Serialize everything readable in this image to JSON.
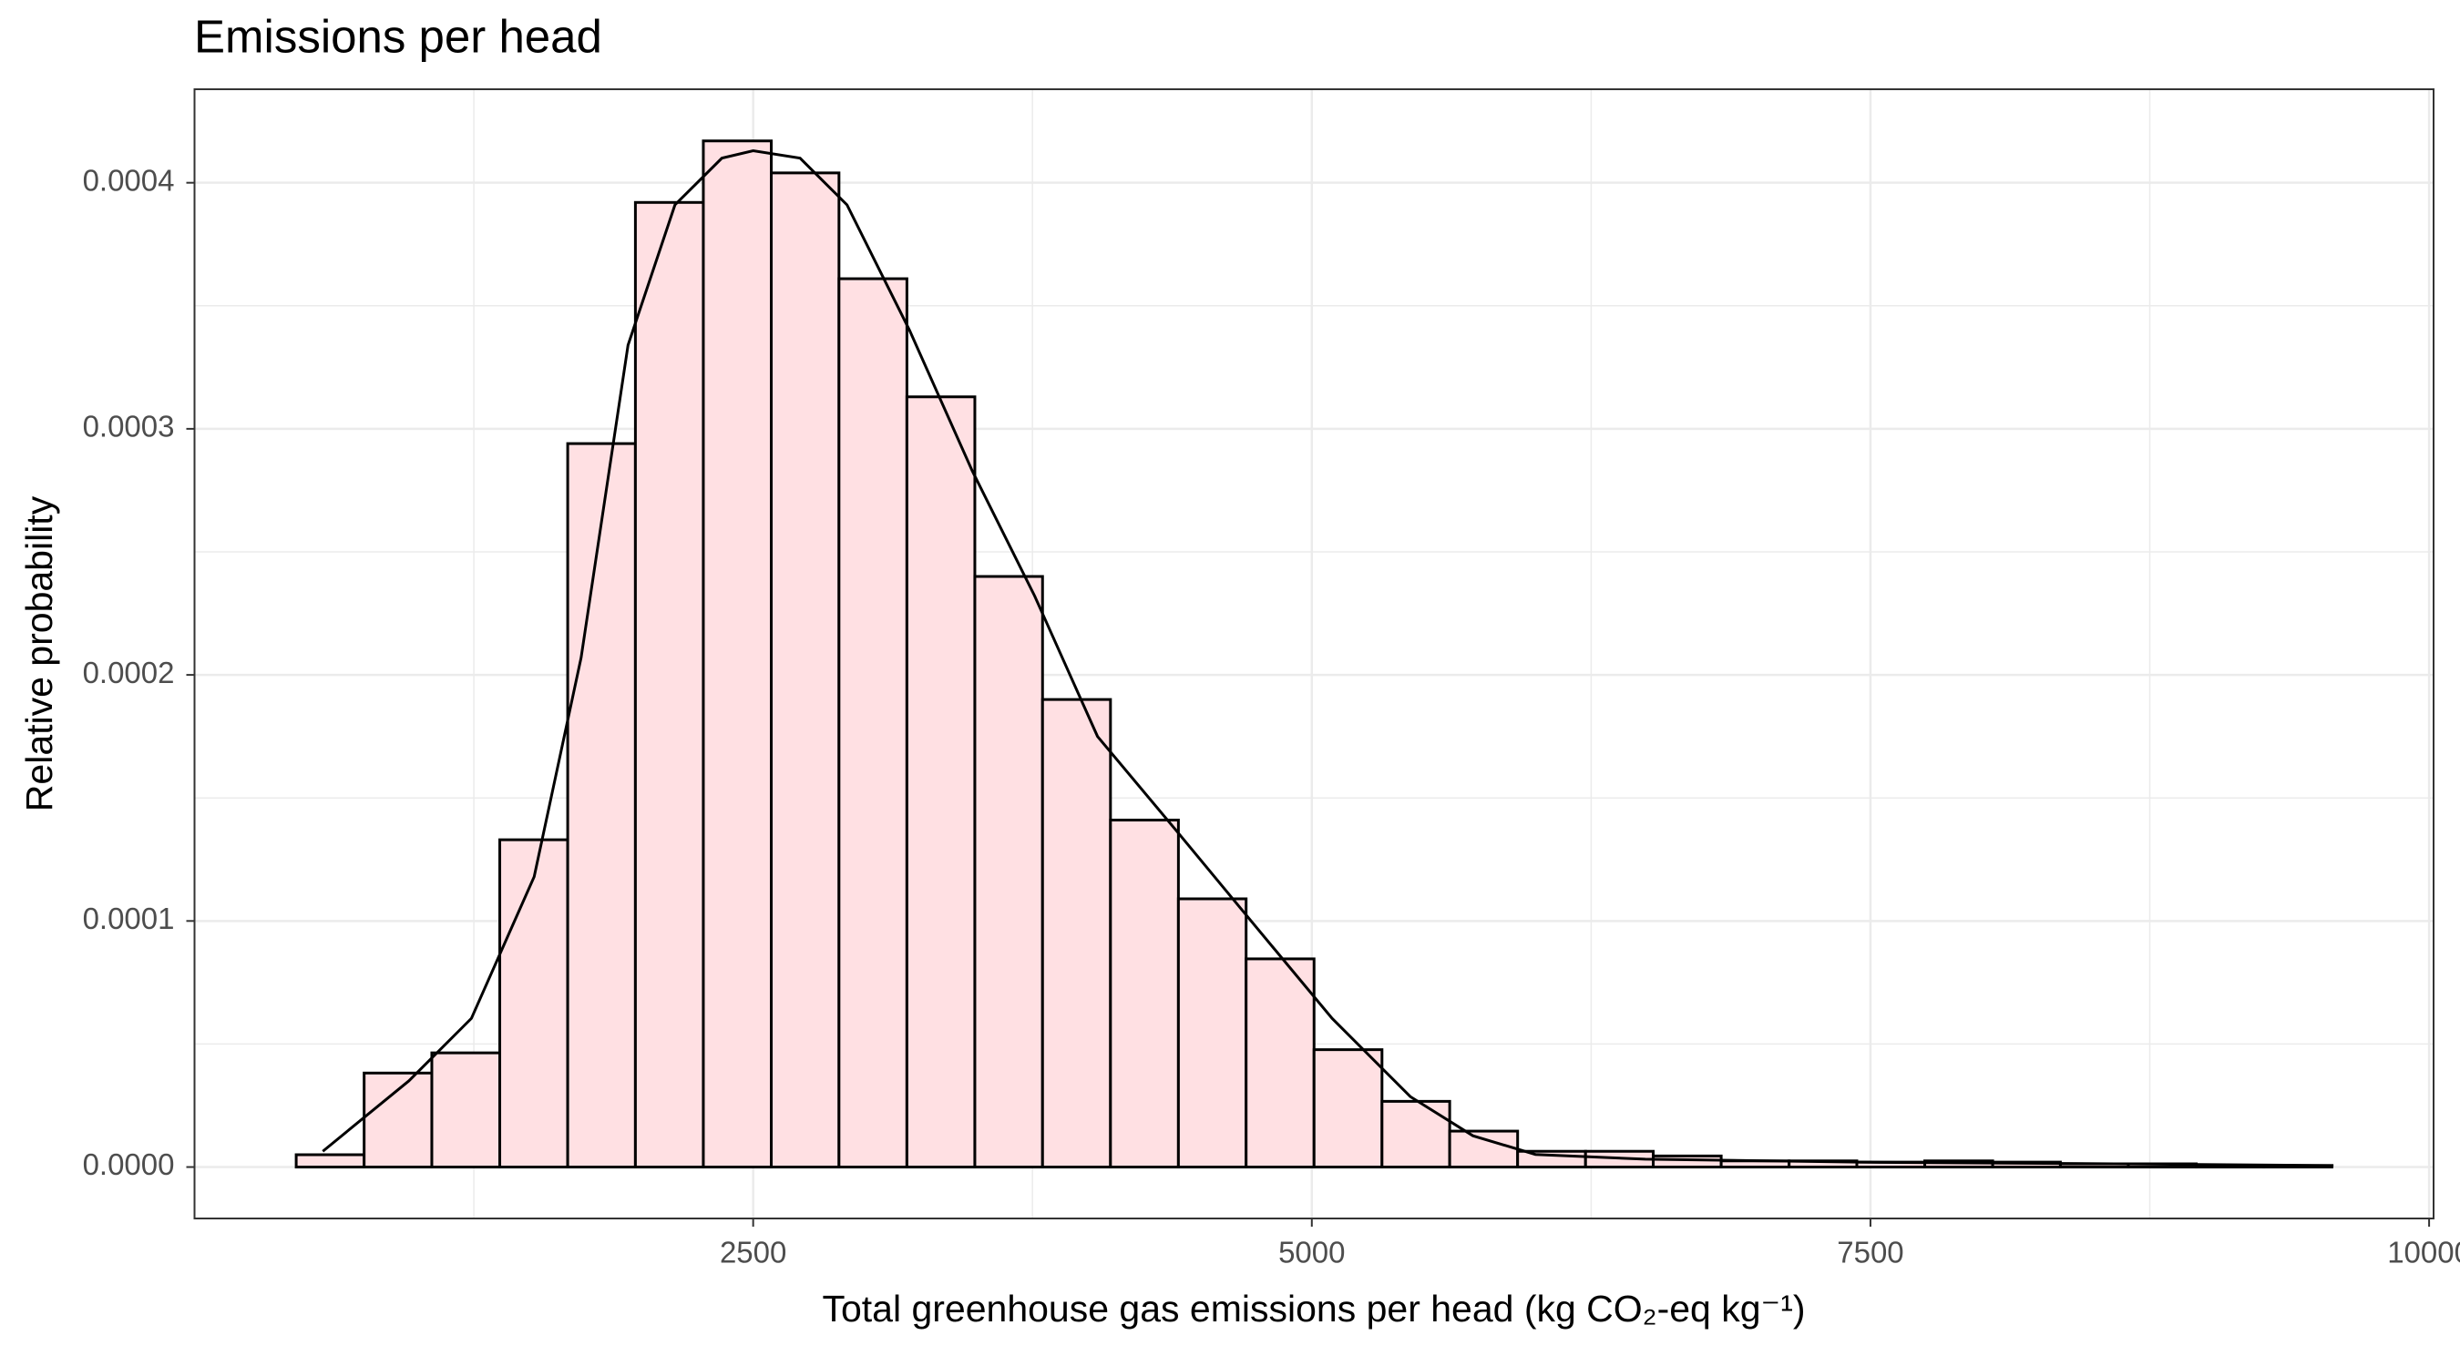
{
  "chart_data": {
    "type": "histogram",
    "title": "Emissions per head",
    "x_label": "Total greenhouse gas emissions per head (kg CO₂-eq kg⁻¹)",
    "y_label": "Relative probability",
    "bins": [
      455,
      759,
      1062,
      1366,
      1670,
      1973,
      2277,
      2581,
      2884,
      3188,
      3492,
      3795,
      4099,
      4403,
      4706,
      5010,
      5314,
      5617,
      5921,
      6225,
      6528,
      6832,
      7136,
      7439,
      7743,
      8047,
      8350,
      8654,
      8958,
      9261,
      9565
    ],
    "values": [
      5e-06,
      3.82e-05,
      4.64e-05,
      0.000133,
      0.000294,
      0.000392,
      0.000417,
      0.000404,
      0.000361,
      0.000313,
      0.00024,
      0.00019,
      0.000141,
      0.000109,
      8.46e-05,
      4.77e-05,
      2.67e-05,
      1.46e-05,
      6.4e-06,
      6.4e-06,
      4.5e-06,
      2.5e-06,
      2.5e-06,
      2e-06,
      2.5e-06,
      2e-06,
      1.3e-06,
      1.3e-06,
      6e-07,
      6e-07
    ],
    "color": "#ffe0e3",
    "edge_color": "#000000",
    "density": {
      "color": "#000000",
      "x": [
        574,
        959,
        1239,
        1520,
        1730,
        1940,
        2150,
        2360,
        2500,
        2710,
        2920,
        3200,
        3480,
        3760,
        4041,
        4391,
        4741,
        5091,
        5441,
        5721,
        6001,
        6492,
        7542,
        8592,
        9572
      ],
      "values": [
        6.4e-06,
        3.5e-05,
        6.04e-05,
        0.000118,
        0.000207,
        0.000334,
        0.000391,
        0.00041,
        0.000413,
        0.00041,
        0.000391,
        0.00034,
        0.000283,
        0.000232,
        0.000175,
        0.000137,
        9.86e-05,
        6.04e-05,
        2.86e-05,
        1.27e-05,
        5.1e-06,
        3.2e-06,
        1.9e-06,
        1.3e-06,
        6e-07
      ]
    },
    "xlim": [
      0,
      10020
    ],
    "ylim": [
      -2.09e-05,
      0.000438
    ],
    "xticks": [
      2500,
      5000,
      7500,
      10000
    ],
    "yticks": [
      {
        "value": 0,
        "label": "0.0000"
      },
      {
        "value": 0.0001,
        "label": "0.0001"
      },
      {
        "value": 0.0002,
        "label": "0.0002"
      },
      {
        "value": 0.0003,
        "label": "0.0003"
      },
      {
        "value": 0.0004,
        "label": "0.0004"
      }
    ],
    "x_minor_grid": [
      1250,
      3750,
      6250,
      8750
    ],
    "y_minor_grid": [
      5e-05,
      0.00015,
      0.00025,
      0.00035
    ],
    "grid": true
  }
}
